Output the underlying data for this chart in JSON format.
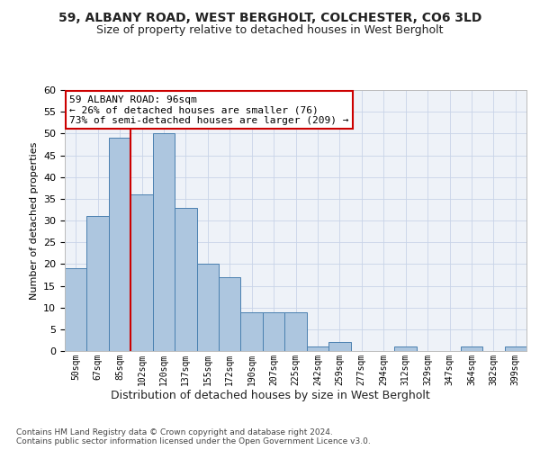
{
  "title1": "59, ALBANY ROAD, WEST BERGHOLT, COLCHESTER, CO6 3LD",
  "title2": "Size of property relative to detached houses in West Bergholt",
  "xlabel": "Distribution of detached houses by size in West Bergholt",
  "ylabel": "Number of detached properties",
  "categories": [
    "50sqm",
    "67sqm",
    "85sqm",
    "102sqm",
    "120sqm",
    "137sqm",
    "155sqm",
    "172sqm",
    "190sqm",
    "207sqm",
    "225sqm",
    "242sqm",
    "259sqm",
    "277sqm",
    "294sqm",
    "312sqm",
    "329sqm",
    "347sqm",
    "364sqm",
    "382sqm",
    "399sqm"
  ],
  "values": [
    19,
    31,
    49,
    36,
    50,
    33,
    20,
    17,
    9,
    9,
    9,
    1,
    2,
    0,
    0,
    1,
    0,
    0,
    1,
    0,
    1
  ],
  "bar_color": "#adc6df",
  "bar_edge_color": "#4a80b0",
  "subject_line_color": "#cc0000",
  "subject_line_bin": 2,
  "annotation_text": "59 ALBANY ROAD: 96sqm\n← 26% of detached houses are smaller (76)\n73% of semi-detached houses are larger (209) →",
  "annotation_box_facecolor": "#ffffff",
  "annotation_box_edgecolor": "#cc0000",
  "ylim": [
    0,
    60
  ],
  "yticks": [
    0,
    5,
    10,
    15,
    20,
    25,
    30,
    35,
    40,
    45,
    50,
    55,
    60
  ],
  "footer": "Contains HM Land Registry data © Crown copyright and database right 2024.\nContains public sector information licensed under the Open Government Licence v3.0.",
  "bg_color": "#eef2f8",
  "grid_color": "#c8d4e8",
  "title1_fontsize": 10,
  "title2_fontsize": 9,
  "ylabel_fontsize": 8,
  "xlabel_fontsize": 9,
  "tick_fontsize": 8,
  "xtick_fontsize": 7
}
